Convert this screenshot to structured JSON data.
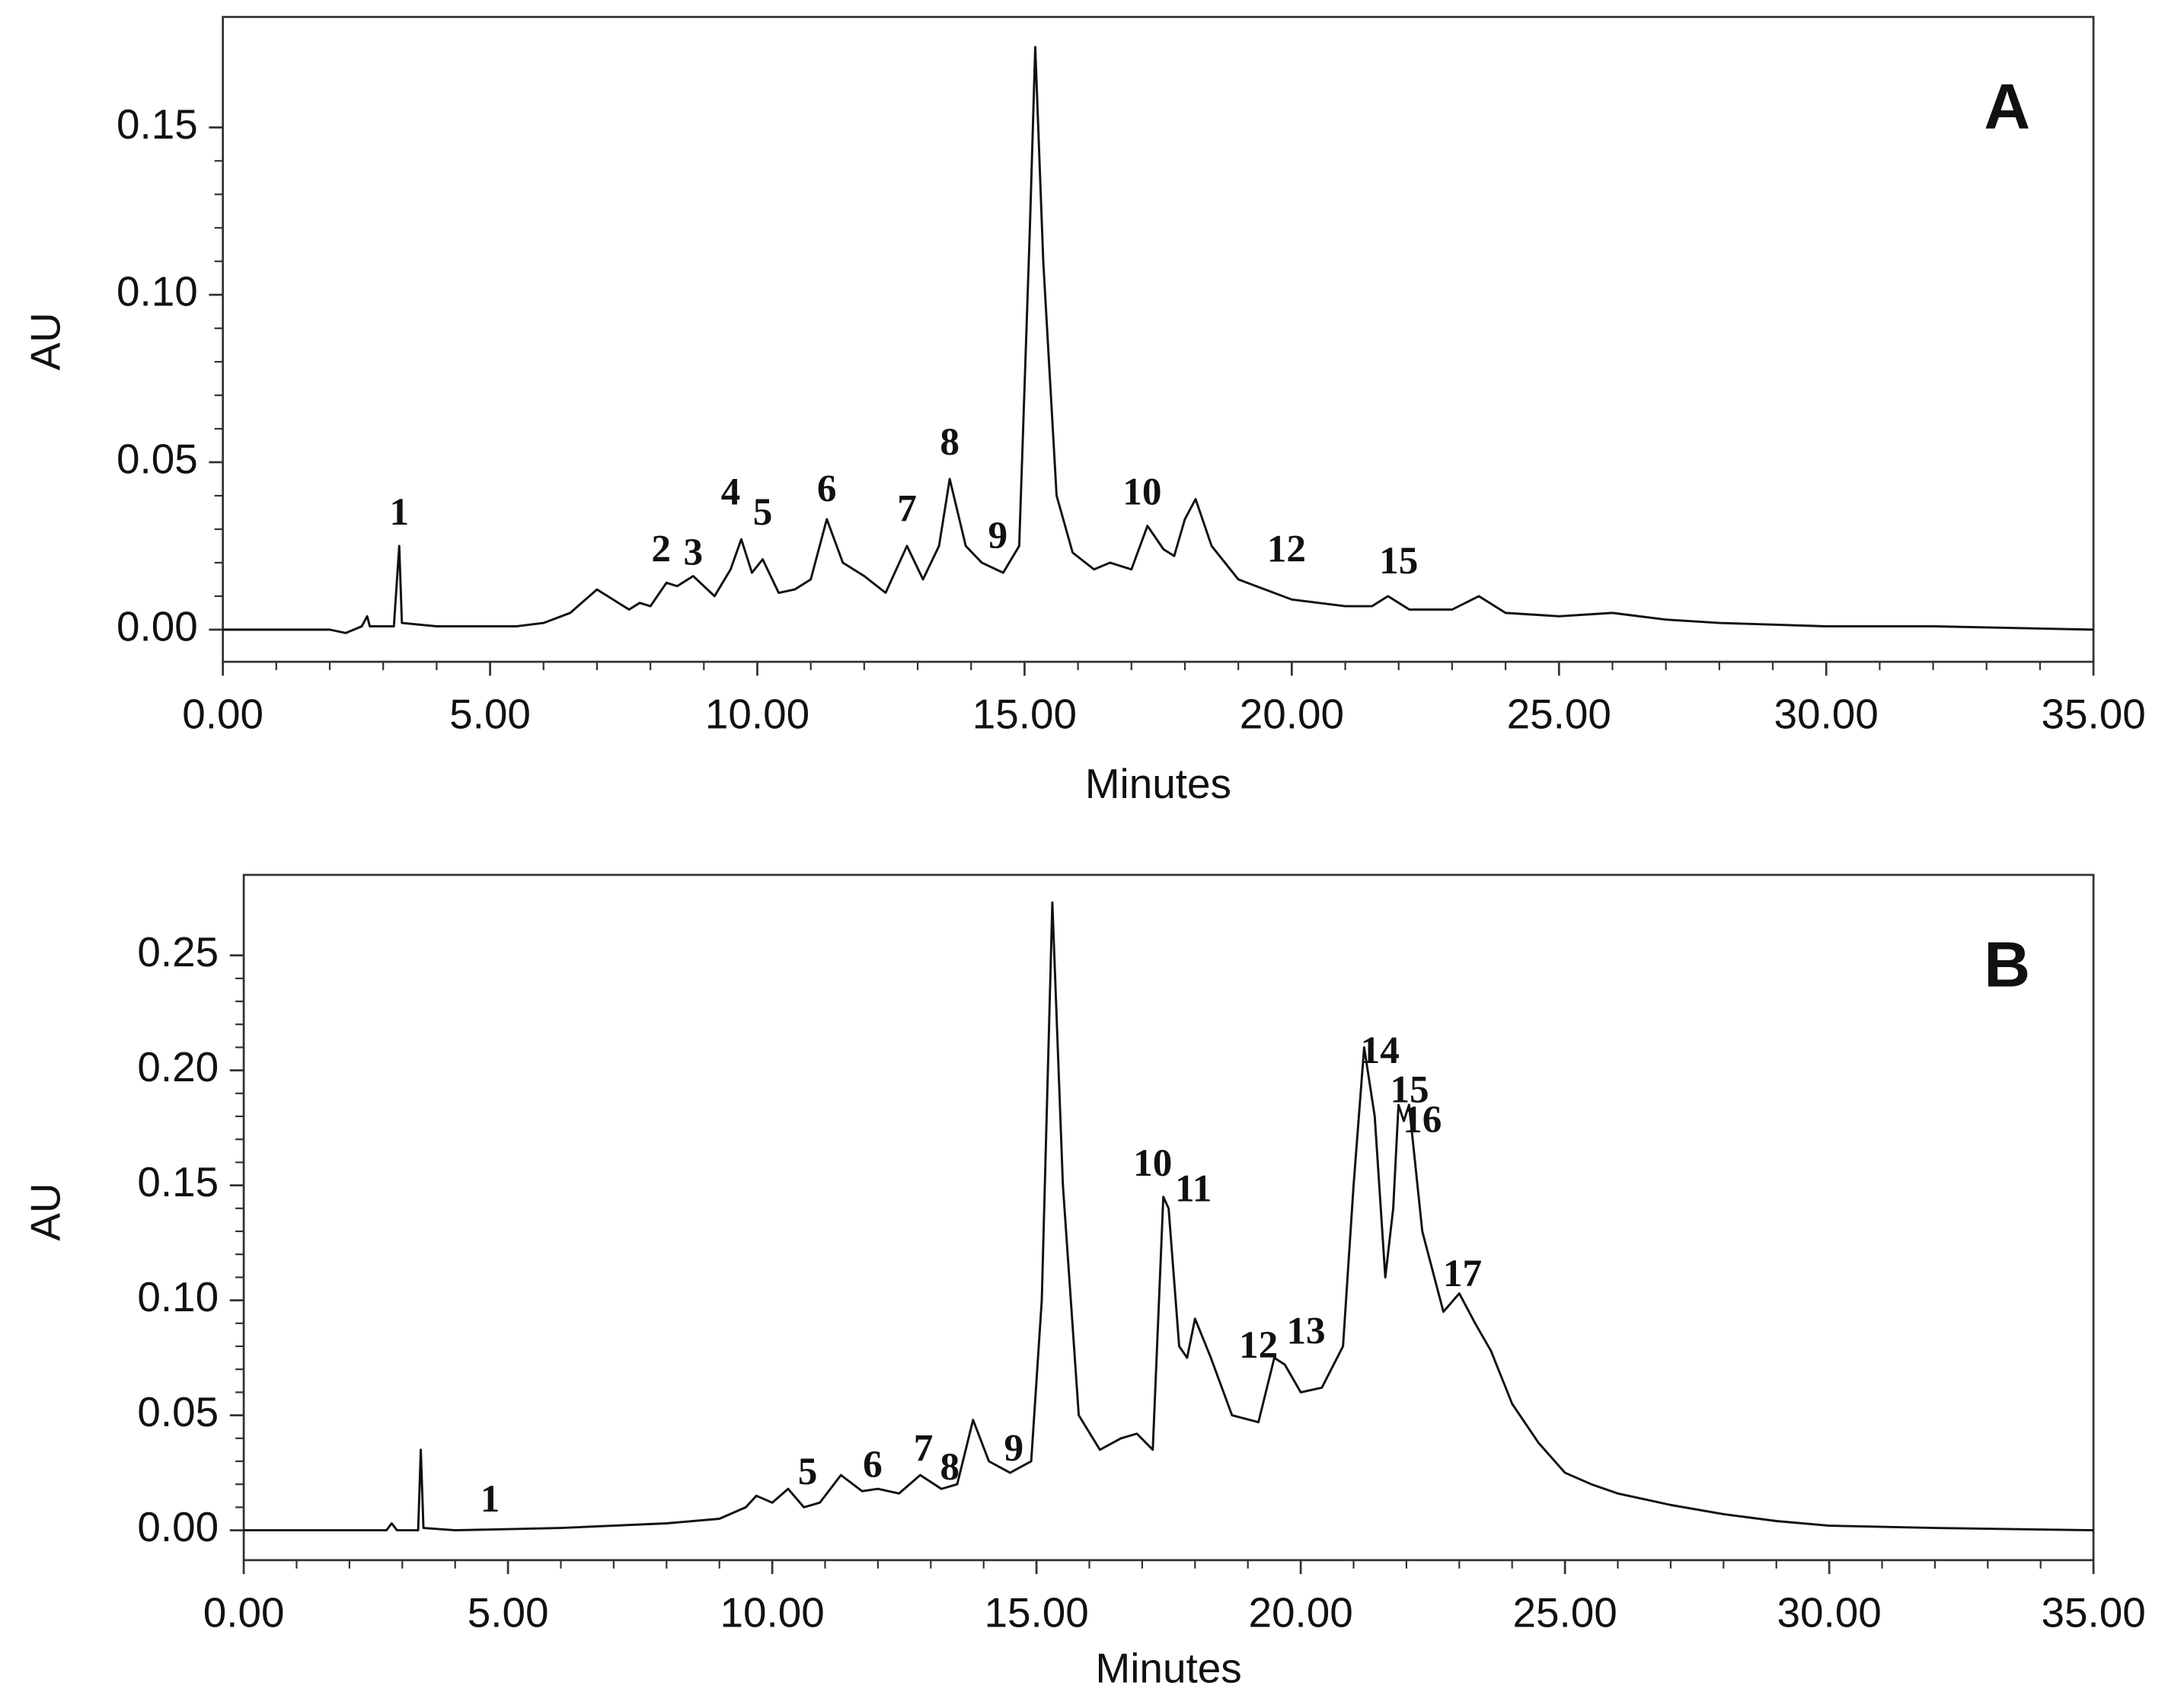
{
  "chart_data": [
    {
      "type": "line",
      "panel_label": "A",
      "xlabel": "Minutes",
      "ylabel": "AU",
      "color": "#111111",
      "xlim": [
        0,
        35
      ],
      "ylim": [
        -0.0096,
        0.183
      ],
      "xticks": [
        {
          "value": 0,
          "label": "0.00"
        },
        {
          "value": 5,
          "label": "5.00"
        },
        {
          "value": 10,
          "label": "10.00"
        },
        {
          "value": 15,
          "label": "15.00"
        },
        {
          "value": 20,
          "label": "20.00"
        },
        {
          "value": 25,
          "label": "25.00"
        },
        {
          "value": 30,
          "label": "30.00"
        },
        {
          "value": 35,
          "label": "35.00"
        }
      ],
      "yticks": [
        {
          "value": 0,
          "label": "0.00"
        },
        0.05,
        {
          "value": 0.1,
          "label": "0.10"
        },
        0.15
      ],
      "x": [
        0,
        2,
        2.3,
        2.6,
        2.7,
        2.75,
        3.2,
        3.3,
        3.35,
        4,
        5,
        5.5,
        6,
        6.5,
        7,
        7.3,
        7.6,
        7.8,
        8.0,
        8.3,
        8.5,
        8.8,
        9.2,
        9.5,
        9.7,
        9.9,
        10.1,
        10.4,
        10.7,
        11.0,
        11.3,
        11.6,
        12.0,
        12.4,
        12.8,
        13.1,
        13.4,
        13.6,
        13.9,
        14.2,
        14.6,
        14.9,
        15.1,
        15.2,
        15.35,
        15.6,
        15.9,
        16.3,
        16.6,
        17.0,
        17.3,
        17.6,
        17.8,
        18.0,
        18.2,
        18.5,
        19.0,
        19.5,
        20.0,
        20.5,
        21.0,
        21.5,
        21.8,
        22.2,
        23.0,
        23.5,
        24.0,
        25.0,
        26.0,
        27,
        28,
        30,
        32,
        35
      ],
      "values": [
        0,
        0,
        -0.001,
        0.001,
        0.004,
        0.001,
        0.001,
        0.025,
        0.002,
        0.001,
        0.001,
        0.001,
        0.002,
        0.005,
        0.012,
        0.009,
        0.006,
        0.008,
        0.007,
        0.014,
        0.013,
        0.016,
        0.01,
        0.018,
        0.027,
        0.017,
        0.021,
        0.011,
        0.012,
        0.015,
        0.033,
        0.02,
        0.016,
        0.011,
        0.025,
        0.015,
        0.025,
        0.045,
        0.025,
        0.02,
        0.017,
        0.025,
        0.12,
        0.174,
        0.11,
        0.04,
        0.023,
        0.018,
        0.02,
        0.018,
        0.031,
        0.024,
        0.022,
        0.033,
        0.039,
        0.025,
        0.015,
        0.012,
        0.009,
        0.008,
        0.007,
        0.007,
        0.01,
        0.006,
        0.006,
        0.01,
        0.005,
        0.004,
        0.005,
        0.003,
        0.002,
        0.001,
        0.001,
        0
      ],
      "annotations": [
        {
          "text": "1",
          "x": 3.3,
          "y": 0.034
        },
        {
          "text": "2",
          "x": 8.2,
          "y": 0.023
        },
        {
          "text": "3",
          "x": 8.8,
          "y": 0.022
        },
        {
          "text": "4",
          "x": 9.5,
          "y": 0.04
        },
        {
          "text": "5",
          "x": 10.1,
          "y": 0.034
        },
        {
          "text": "6",
          "x": 11.3,
          "y": 0.041
        },
        {
          "text": "7",
          "x": 12.8,
          "y": 0.035
        },
        {
          "text": "8",
          "x": 13.6,
          "y": 0.055
        },
        {
          "text": "9",
          "x": 14.5,
          "y": 0.027
        },
        {
          "text": "10",
          "x": 17.2,
          "y": 0.04
        },
        {
          "text": "12",
          "x": 19.9,
          "y": 0.023
        },
        {
          "text": "15",
          "x": 22.0,
          "y": 0.0195
        }
      ]
    },
    {
      "type": "line",
      "panel_label": "B",
      "xlabel": "Minutes",
      "ylabel": "AU",
      "color": "#111111",
      "xlim": [
        0,
        35
      ],
      "ylim": [
        -0.013,
        0.285
      ],
      "xticks": [
        {
          "value": 0,
          "label": "0.00"
        },
        {
          "value": 5,
          "label": "5.00"
        },
        {
          "value": 10,
          "label": "10.00"
        },
        {
          "value": 15,
          "label": "15.00"
        },
        {
          "value": 20,
          "label": "20.00"
        },
        {
          "value": 25,
          "label": "25.00"
        },
        {
          "value": 30,
          "label": "30.00"
        },
        {
          "value": 35,
          "label": "35.00"
        }
      ],
      "yticks": [
        {
          "value": 0,
          "label": "0.00"
        },
        0.05,
        {
          "value": 0.1,
          "label": "0.10"
        },
        0.15,
        {
          "value": 0.2,
          "label": "0.20"
        },
        0.25
      ],
      "x": [
        0,
        2.7,
        2.8,
        2.9,
        3.3,
        3.35,
        3.4,
        4,
        6,
        8,
        9,
        9.5,
        9.7,
        10,
        10.3,
        10.6,
        10.9,
        11.3,
        11.7,
        12.0,
        12.4,
        12.8,
        13.2,
        13.5,
        13.8,
        14.1,
        14.5,
        14.9,
        15.1,
        15.3,
        15.5,
        15.8,
        16.2,
        16.6,
        16.9,
        17.2,
        17.4,
        17.5,
        17.7,
        17.85,
        18.0,
        18.3,
        18.7,
        19.2,
        19.5,
        19.7,
        20.0,
        20.4,
        20.8,
        21.0,
        21.2,
        21.4,
        21.6,
        21.75,
        21.85,
        21.95,
        22.05,
        22.3,
        22.7,
        23.0,
        23.3,
        23.6,
        24.0,
        24.5,
        25,
        25.5,
        26,
        27,
        28,
        29,
        30,
        32,
        35
      ],
      "values": [
        0,
        0,
        0.003,
        0,
        0,
        0.035,
        0.001,
        0,
        0.001,
        0.003,
        0.005,
        0.01,
        0.015,
        0.012,
        0.018,
        0.01,
        0.012,
        0.024,
        0.017,
        0.018,
        0.016,
        0.024,
        0.018,
        0.02,
        0.048,
        0.03,
        0.025,
        0.03,
        0.1,
        0.273,
        0.15,
        0.05,
        0.035,
        0.04,
        0.042,
        0.035,
        0.145,
        0.14,
        0.08,
        0.075,
        0.092,
        0.075,
        0.05,
        0.047,
        0.075,
        0.072,
        0.06,
        0.062,
        0.08,
        0.15,
        0.21,
        0.18,
        0.11,
        0.14,
        0.185,
        0.178,
        0.185,
        0.13,
        0.095,
        0.103,
        0.09,
        0.078,
        0.055,
        0.038,
        0.025,
        0.02,
        0.016,
        0.011,
        0.007,
        0.004,
        0.002,
        0.001,
        0
      ],
      "annotations": [
        {
          "text": "1",
          "x": 4.66,
          "y": 0.012
        },
        {
          "text": "5",
          "x": 10.67,
          "y": 0.024
        },
        {
          "text": "6",
          "x": 11.9,
          "y": 0.027
        },
        {
          "text": "7",
          "x": 12.86,
          "y": 0.034
        },
        {
          "text": "8",
          "x": 13.36,
          "y": 0.026
        },
        {
          "text": "9",
          "x": 14.57,
          "y": 0.034
        },
        {
          "text": "10",
          "x": 17.2,
          "y": 0.158
        },
        {
          "text": "11",
          "x": 17.97,
          "y": 0.147
        },
        {
          "text": "12",
          "x": 19.2,
          "y": 0.079
        },
        {
          "text": "13",
          "x": 20.1,
          "y": 0.085
        },
        {
          "text": "14",
          "x": 21.5,
          "y": 0.207
        },
        {
          "text": "15",
          "x": 22.06,
          "y": 0.19
        },
        {
          "text": "16",
          "x": 22.3,
          "y": 0.177
        },
        {
          "text": "17",
          "x": 23.06,
          "y": 0.11
        }
      ]
    }
  ]
}
